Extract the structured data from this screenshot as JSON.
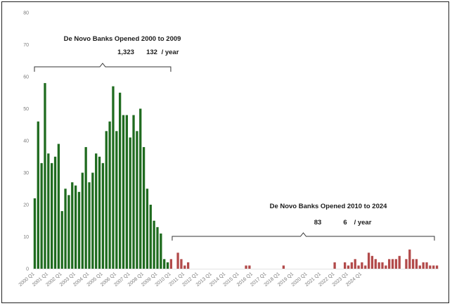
{
  "chart_data": {
    "type": "bar",
    "title": "",
    "xlabel": "",
    "ylabel": "",
    "ylim": [
      0,
      80
    ],
    "yticks": [
      0,
      10,
      20,
      30,
      40,
      50,
      60,
      70,
      80
    ],
    "grid": false,
    "x_tick_labels": [
      "2000 Q1",
      "2001 Q1",
      "2002 Q1",
      "2003 Q1",
      "2004 Q1",
      "2005 Q1",
      "2006 Q1",
      "2007 Q1",
      "2008 Q1",
      "2009 Q1",
      "2010 Q1",
      "2011 Q1",
      "2012 Q1",
      "2013 Q1",
      "2014 Q1",
      "2015 Q1",
      "2016 Q1",
      "2017 Q1",
      "2018 Q1",
      "2019 Q1",
      "2020 Q1",
      "2021 Q1",
      "2022 Q1",
      "2023 Q1",
      "2024 Q1"
    ],
    "series": [
      {
        "color": "#1f6b1f",
        "values": [
          22,
          46,
          33,
          58,
          36,
          33,
          35,
          39,
          18,
          25,
          23,
          27,
          26,
          24,
          30,
          38,
          27,
          30,
          36,
          35,
          33,
          43,
          46,
          57,
          43,
          55,
          48,
          48,
          41,
          48,
          43,
          50,
          38,
          25,
          20,
          15,
          13,
          11,
          3,
          2
        ]
      },
      {
        "color": "#b24a4a",
        "values": [
          3,
          0,
          5,
          3,
          1,
          2,
          0,
          0,
          0,
          0,
          0,
          0,
          0,
          0,
          0,
          0,
          0,
          0,
          0,
          0,
          0,
          0,
          1,
          1,
          0,
          0,
          0,
          0,
          0,
          0,
          0,
          0,
          0,
          1,
          0,
          0,
          0,
          0,
          0,
          0,
          0,
          0,
          0,
          0,
          0,
          0,
          0,
          0,
          2,
          0,
          0,
          2,
          1,
          2,
          3,
          1,
          2,
          1,
          5,
          4,
          3,
          2,
          2,
          1,
          3,
          3,
          3,
          4,
          0,
          3,
          6,
          3,
          3,
          1,
          2,
          2,
          1,
          1,
          1
        ]
      }
    ],
    "annotations": [
      {
        "title": "De Novo Banks Opened 2000 to 2009",
        "total": "1,323",
        "rate": "132",
        "unit": "/ year"
      },
      {
        "title": "De Novo Banks Opened 2010 to 2024",
        "total": "83",
        "rate": "6",
        "unit": "/ year"
      }
    ]
  }
}
